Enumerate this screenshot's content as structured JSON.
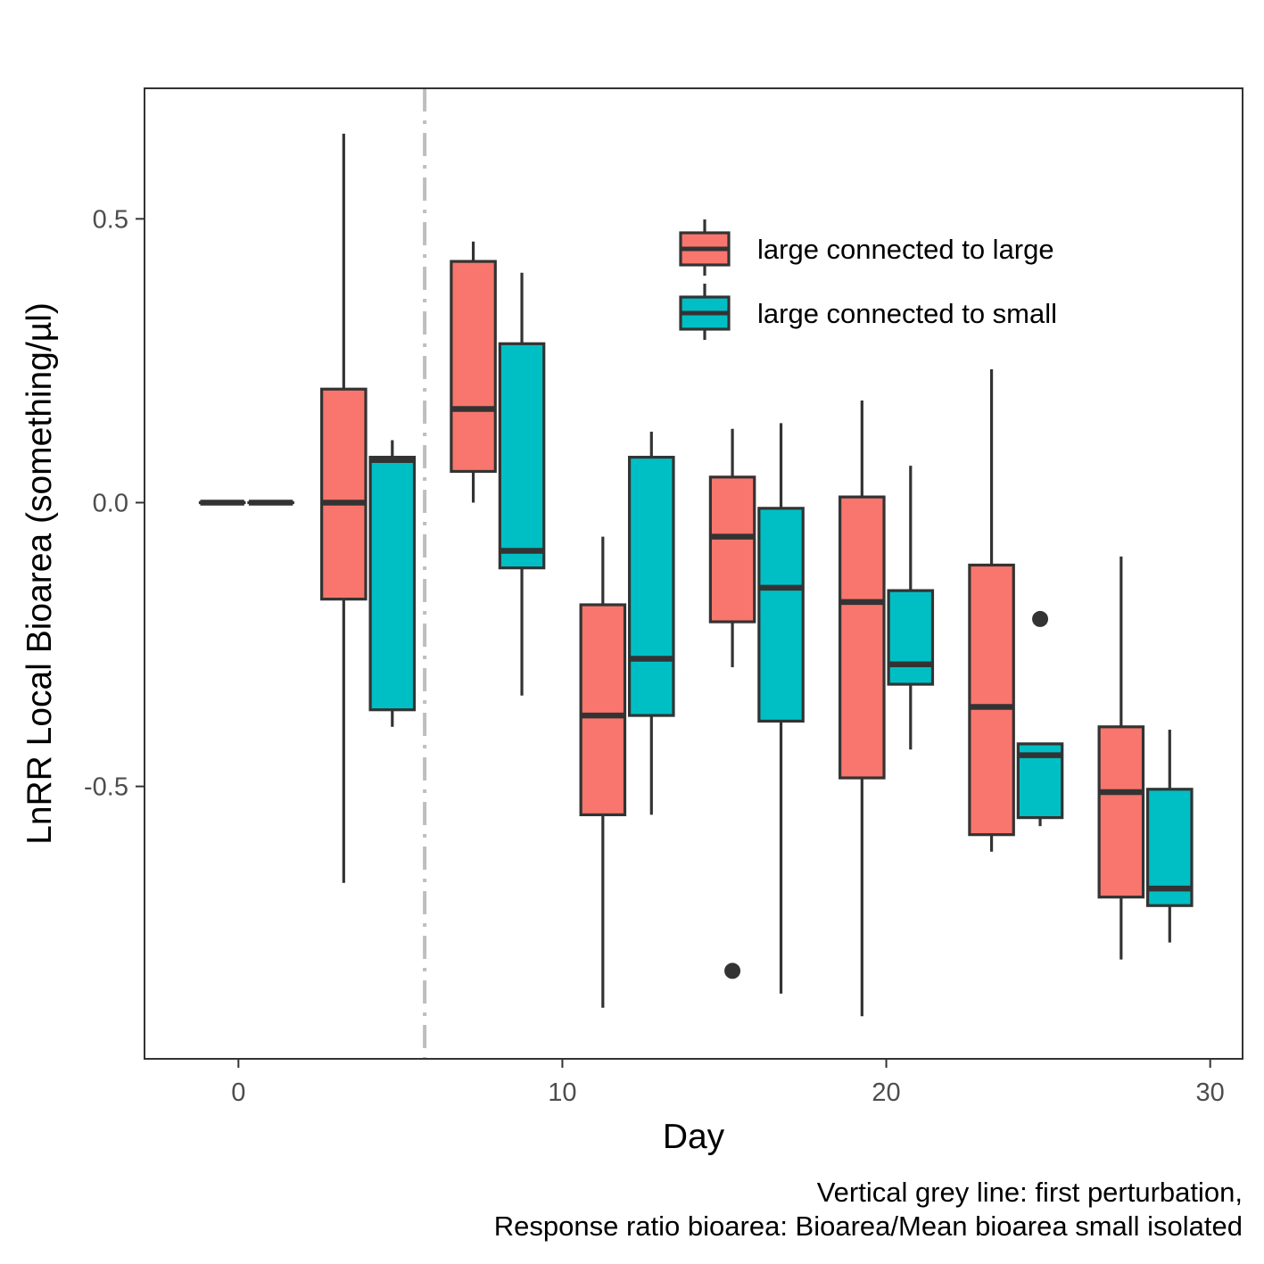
{
  "chart_data": {
    "type": "boxplot",
    "title": "",
    "xlabel": "Day",
    "ylabel": "LnRR Local Bioarea (something/µl)",
    "xlim": [
      -2.9,
      31
    ],
    "ylim": [
      -0.98,
      0.73
    ],
    "x_ticks": [
      0,
      10,
      20,
      30
    ],
    "x_tick_labels": [
      "0",
      "10",
      "20",
      "30"
    ],
    "y_ticks": [
      -0.5,
      0.0,
      0.5
    ],
    "y_tick_labels": [
      "-0.5",
      "0.0",
      "0.5"
    ],
    "grid": false,
    "legend_position": "top-right (inside)",
    "vline": {
      "x": 5.75,
      "style": "dashed grey",
      "color": "#bebebe"
    },
    "series": [
      {
        "name": "large connected to large",
        "color": "#f8766d",
        "boxes": [
          {
            "x": -0.5,
            "min": 0.0,
            "q1": 0.0,
            "median": 0.0,
            "q3": 0.0,
            "max": 0.0,
            "outliers": []
          },
          {
            "x": 3.25,
            "min": -0.67,
            "q1": -0.17,
            "median": 0.0,
            "q3": 0.2,
            "max": 0.65,
            "outliers": []
          },
          {
            "x": 7.25,
            "min": 0.0,
            "q1": 0.055,
            "median": 0.165,
            "q3": 0.425,
            "max": 0.46,
            "outliers": []
          },
          {
            "x": 11.25,
            "min": -0.89,
            "q1": -0.55,
            "median": -0.375,
            "q3": -0.18,
            "max": -0.06,
            "outliers": []
          },
          {
            "x": 15.25,
            "min": -0.29,
            "q1": -0.21,
            "median": -0.06,
            "q3": 0.045,
            "max": 0.13,
            "outliers": [
              -0.825
            ]
          },
          {
            "x": 19.25,
            "min": -0.905,
            "q1": -0.485,
            "median": -0.175,
            "q3": 0.01,
            "max": 0.18,
            "outliers": []
          },
          {
            "x": 23.25,
            "min": -0.615,
            "q1": -0.585,
            "median": -0.36,
            "q3": -0.11,
            "max": 0.235,
            "outliers": []
          },
          {
            "x": 27.25,
            "min": -0.805,
            "q1": -0.695,
            "median": -0.51,
            "q3": -0.395,
            "max": -0.095,
            "outliers": []
          }
        ]
      },
      {
        "name": "large connected to small",
        "color": "#00bfc4",
        "boxes": [
          {
            "x": 1.0,
            "min": 0.0,
            "q1": 0.0,
            "median": 0.0,
            "q3": 0.0,
            "max": 0.0,
            "outliers": []
          },
          {
            "x": 4.75,
            "min": -0.395,
            "q1": -0.365,
            "median": 0.075,
            "q3": 0.08,
            "max": 0.11,
            "outliers": []
          },
          {
            "x": 8.75,
            "min": -0.34,
            "q1": -0.115,
            "median": -0.085,
            "q3": 0.28,
            "max": 0.405,
            "outliers": []
          },
          {
            "x": 12.75,
            "min": -0.55,
            "q1": -0.375,
            "median": -0.275,
            "q3": 0.08,
            "max": 0.125,
            "outliers": []
          },
          {
            "x": 16.75,
            "min": -0.865,
            "q1": -0.385,
            "median": -0.15,
            "q3": -0.01,
            "max": 0.14,
            "outliers": []
          },
          {
            "x": 20.75,
            "min": -0.435,
            "q1": -0.32,
            "median": -0.285,
            "q3": -0.155,
            "max": 0.065,
            "outliers": []
          },
          {
            "x": 24.75,
            "min": -0.57,
            "q1": -0.555,
            "median": -0.445,
            "q3": -0.425,
            "max": -0.425,
            "outliers": [
              -0.205
            ]
          },
          {
            "x": 28.75,
            "min": -0.775,
            "q1": -0.71,
            "median": -0.68,
            "q3": -0.505,
            "max": -0.4,
            "outliers": []
          }
        ]
      }
    ]
  },
  "caption": {
    "line1": "Vertical grey line: first perturbation, ",
    "line2": "Response ratio bioarea: Bioarea/Mean bioarea small isolated"
  }
}
